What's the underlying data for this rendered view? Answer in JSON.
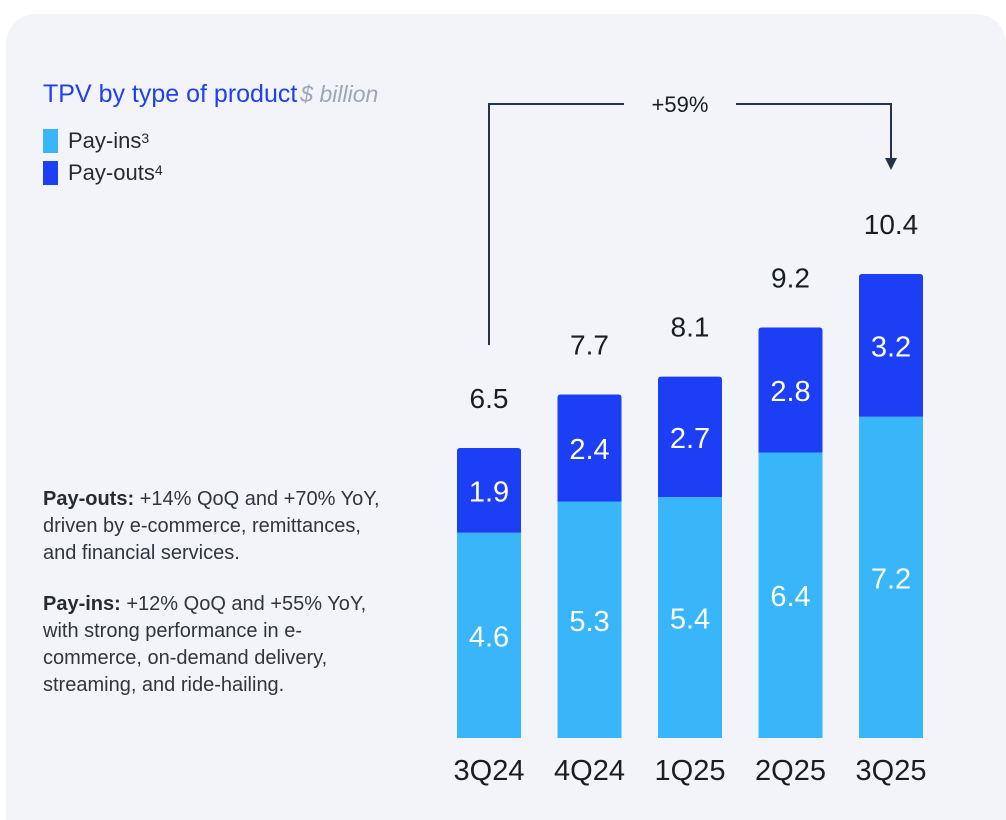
{
  "chart_data": {
    "type": "bar",
    "stacked": true,
    "title": "TPV by type of product",
    "unit": "$ billion",
    "categories": [
      "3Q24",
      "4Q24",
      "1Q25",
      "2Q25",
      "3Q25"
    ],
    "series": [
      {
        "name": "Pay-ins",
        "footnote": "3",
        "color": "#38b6f9",
        "values": [
          4.6,
          5.3,
          5.4,
          6.4,
          7.2
        ]
      },
      {
        "name": "Pay-outs",
        "footnote": "4",
        "color": "#1c3ef4",
        "values": [
          1.9,
          2.4,
          2.7,
          2.8,
          3.2
        ]
      }
    ],
    "totals": [
      6.5,
      7.7,
      8.1,
      9.2,
      10.4
    ],
    "annotation": {
      "text": "+59%",
      "from": "3Q24",
      "to": "3Q25"
    },
    "ylim": [
      0,
      10.4
    ]
  },
  "notes": [
    {
      "heading": "Pay-outs:",
      "text": " +14% QoQ and +70% YoY, driven by e-commerce, remittances, and financial services."
    },
    {
      "heading": "Pay-ins:",
      "text": " +12% QoQ and +55% YoY, with strong performance in e-commerce, on-demand delivery, streaming, and ride-hailing."
    }
  ],
  "colors": {
    "title": "#1f3ff0",
    "payins": "#38b6f9",
    "payouts": "#1c3ef4",
    "arrow": "#23344a"
  }
}
